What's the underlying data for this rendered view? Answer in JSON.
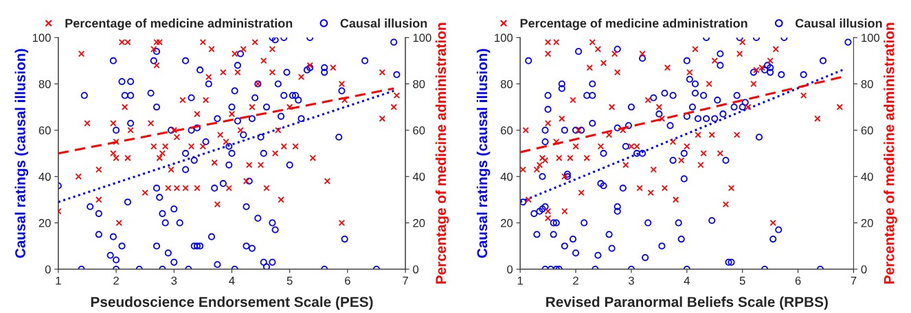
{
  "chart_data": [
    {
      "type": "scatter",
      "xlabel": "Pseudoscience Endorsement Scale (PES)",
      "ylabel": "Causal ratings (causal illusion)",
      "y2label": "Percentage of medicine administration",
      "xlim": [
        1,
        7
      ],
      "xticks": [
        1,
        2,
        3,
        4,
        5,
        6,
        7
      ],
      "ylim": [
        0,
        100
      ],
      "yticks": [
        0,
        20,
        40,
        60,
        80,
        100
      ],
      "y2lim": [
        0,
        100
      ],
      "y2ticks": [
        0,
        20,
        40,
        60,
        80,
        100
      ],
      "legend": "top",
      "grid": false,
      "series": [
        {
          "name": "Percentage of medicine administration",
          "color": "#ff0000",
          "marker": "cross",
          "axis": "y2",
          "x": [
            1.0,
            1.4,
            1.35,
            1.5,
            1.7,
            1.7,
            1.95,
            1.95,
            2.0,
            2.05,
            2.1,
            2.2,
            2.15,
            2.2,
            2.25,
            2.0,
            2.6,
            2.65,
            2.7,
            2.75,
            2.7,
            2.65,
            2.75,
            2.8,
            2.85,
            2.95,
            2.9,
            3.0,
            3.05,
            3.05,
            3.15,
            3.2,
            3.3,
            3.4,
            3.4,
            3.5,
            3.5,
            3.6,
            3.65,
            3.7,
            3.75,
            3.8,
            3.85,
            3.9,
            3.95,
            4.05,
            4.1,
            4.15,
            4.2,
            4.25,
            4.3,
            4.35,
            4.4,
            4.5,
            4.55,
            4.6,
            4.7,
            4.75,
            4.8,
            4.85,
            4.9,
            5.0,
            5.1,
            5.2,
            5.35,
            5.4,
            5.65,
            5.75,
            5.9,
            5.95,
            5.9,
            6.6,
            6.8,
            6.85,
            6.6,
            4.7,
            4.45,
            4.0,
            3.55,
            2.5
          ],
          "values": [
            25,
            93,
            40,
            63,
            43,
            30,
            50,
            63,
            55,
            20,
            98,
            98,
            70,
            48,
            60,
            48,
            63,
            95,
            98,
            98,
            88,
            53,
            48,
            50,
            53,
            43,
            35,
            60,
            35,
            57,
            73,
            35,
            53,
            35,
            67,
            53,
            98,
            83,
            95,
            46,
            28,
            58,
            85,
            55,
            35,
            93,
            85,
            60,
            95,
            38,
            45,
            70,
            98,
            45,
            90,
            35,
            85,
            50,
            60,
            30,
            53,
            70,
            53,
            83,
            88,
            48,
            38,
            87,
            20,
            73,
            80,
            65,
            70,
            75,
            85,
            95,
            80,
            67,
            73,
            33
          ]
        },
        {
          "name": "Causal illusion",
          "color": "#0000ff",
          "marker": "circle",
          "x": [
            1.0,
            1.45,
            1.55,
            1.7,
            1.7,
            1.95,
            2.0,
            1.95,
            1.9,
            2.0,
            2.0,
            1.4,
            2.1,
            2.15,
            2.1,
            2.2,
            2.25,
            2.25,
            2.25,
            2.6,
            2.7,
            2.7,
            2.65,
            2.7,
            2.7,
            2.75,
            2.8,
            2.85,
            2.9,
            2.8,
            2.95,
            3.0,
            3.1,
            3.0,
            3.2,
            3.2,
            3.2,
            3.3,
            3.3,
            3.35,
            3.4,
            3.45,
            3.35,
            3.4,
            3.45,
            3.55,
            3.6,
            3.65,
            3.7,
            3.75,
            3.75,
            3.85,
            3.95,
            3.95,
            4.0,
            4.0,
            4.05,
            4.1,
            4.15,
            4.2,
            4.25,
            4.25,
            4.3,
            4.35,
            4.4,
            4.45,
            4.5,
            4.55,
            4.55,
            4.6,
            4.7,
            4.75,
            4.7,
            4.75,
            4.85,
            4.9,
            4.9,
            4.95,
            5.0,
            5.05,
            5.1,
            5.15,
            5.2,
            5.3,
            5.35,
            5.35,
            5.6,
            5.6,
            5.85,
            5.9,
            5.95,
            5.6,
            6.3,
            6.5,
            6.8,
            6.85,
            4.35,
            4.6,
            4.05,
            3.25,
            2.4,
            4.45,
            4.7,
            4.1,
            4.8
          ],
          "values": [
            36,
            75,
            27,
            24,
            15,
            90,
            60,
            14,
            6,
            4,
            0,
            0,
            81,
            75,
            10,
            29,
            81,
            75,
            63,
            76,
            70,
            94,
            90,
            35,
            10,
            31,
            24,
            20,
            7,
            0,
            60,
            26,
            20,
            3,
            43,
            50,
            90,
            74,
            60,
            10,
            10,
            10,
            47,
            61,
            86,
            55,
            80,
            14,
            35,
            65,
            2,
            37,
            45,
            53,
            50,
            70,
            77,
            88,
            93,
            58,
            27,
            10,
            38,
            65,
            74,
            80,
            57,
            50,
            3,
            70,
            100,
            99,
            20,
            17,
            66,
            75,
            100,
            85,
            45,
            75,
            75,
            73,
            65,
            86,
            100,
            87,
            85,
            87,
            57,
            77,
            13,
            0,
            90,
            0,
            98,
            84,
            9,
            1,
            0,
            0,
            0,
            22,
            3,
            64,
            80
          ]
        },
        {
          "type": "line",
          "color": "#ff0000",
          "line_style": "dashed",
          "axis": "y2",
          "x": [
            1.0,
            6.8
          ],
          "values": [
            50,
            78
          ]
        },
        {
          "type": "line",
          "color": "#0000ff",
          "line_style": "dotted",
          "x": [
            1.0,
            6.8
          ],
          "values": [
            29,
            77
          ]
        }
      ]
    },
    {
      "type": "scatter",
      "xlabel": "Revised Paranormal Beliefs Scale (RPBS)",
      "ylabel": "Causal ratings (causal illusion)",
      "y2label": "Percentage of medicine administration",
      "xlim": [
        1,
        7
      ],
      "xticks": [
        1,
        2,
        3,
        4,
        5,
        6,
        7
      ],
      "ylim": [
        0,
        100
      ],
      "yticks": [
        0,
        20,
        40,
        60,
        80,
        100
      ],
      "y2lim": [
        0,
        100
      ],
      "y2ticks": [
        0,
        20,
        40,
        60,
        80,
        100
      ],
      "legend": "top",
      "grid": false,
      "series": [
        {
          "name": "Percentage of medicine administration",
          "color": "#ff0000",
          "marker": "cross",
          "axis": "y2",
          "x": [
            1.05,
            1.1,
            1.15,
            1.3,
            1.35,
            1.4,
            1.45,
            1.5,
            1.5,
            1.5,
            1.5,
            1.5,
            1.65,
            1.65,
            1.7,
            1.75,
            1.8,
            1.8,
            1.9,
            1.95,
            2.0,
            2.05,
            2.1,
            2.2,
            2.3,
            2.4,
            2.45,
            2.5,
            2.6,
            2.65,
            2.7,
            2.75,
            2.85,
            2.9,
            3.0,
            3.1,
            3.15,
            3.2,
            3.3,
            3.35,
            3.4,
            3.5,
            3.55,
            3.6,
            3.75,
            3.8,
            3.9,
            4.0,
            4.05,
            4.15,
            4.2,
            4.3,
            4.4,
            4.45,
            4.5,
            4.6,
            4.7,
            4.8,
            4.9,
            4.95,
            5.0,
            5.1,
            5.2,
            5.35,
            5.5,
            5.55,
            5.6,
            6.1,
            6.35,
            6.75,
            5.25,
            4.25,
            3.65,
            2.25
          ],
          "values": [
            43,
            60,
            30,
            43,
            45,
            48,
            47,
            93,
            98,
            63,
            25,
            22,
            98,
            55,
            48,
            65,
            40,
            25,
            48,
            73,
            53,
            60,
            33,
            48,
            98,
            95,
            53,
            89,
            58,
            70,
            93,
            85,
            60,
            45,
            53,
            53,
            35,
            93,
            73,
            33,
            43,
            70,
            65,
            35,
            55,
            30,
            47,
            53,
            85,
            95,
            58,
            50,
            80,
            58,
            90,
            50,
            28,
            35,
            58,
            93,
            98,
            70,
            80,
            87,
            90,
            20,
            95,
            75,
            65,
            70,
            86,
            45,
            87,
            87
          ]
        },
        {
          "name": "Causal illusion",
          "color": "#0000ff",
          "marker": "circle",
          "x": [
            1.05,
            1.15,
            1.25,
            1.35,
            1.4,
            1.45,
            1.4,
            1.45,
            1.45,
            1.5,
            1.5,
            1.3,
            1.6,
            1.6,
            1.65,
            1.45,
            1.55,
            1.65,
            1.7,
            1.75,
            1.75,
            1.8,
            1.85,
            1.85,
            1.8,
            1.95,
            2.0,
            2.0,
            2.05,
            2.1,
            2.15,
            2.2,
            2.3,
            2.3,
            2.3,
            2.35,
            2.4,
            2.45,
            2.5,
            2.5,
            2.6,
            2.65,
            2.75,
            2.75,
            2.75,
            2.75,
            2.85,
            2.9,
            2.95,
            3.0,
            3.0,
            3.1,
            3.2,
            3.2,
            3.25,
            3.3,
            3.4,
            3.5,
            3.55,
            3.6,
            3.7,
            3.75,
            3.75,
            3.85,
            3.9,
            3.95,
            3.95,
            4.0,
            4.0,
            4.05,
            4.1,
            4.15,
            4.15,
            4.2,
            4.3,
            4.35,
            4.35,
            4.45,
            4.5,
            4.55,
            4.6,
            4.6,
            4.65,
            4.7,
            4.75,
            4.8,
            4.85,
            4.9,
            4.95,
            5.0,
            5.05,
            5.2,
            5.25,
            5.3,
            5.4,
            5.45,
            5.5,
            5.5,
            5.55,
            5.65,
            5.7,
            5.75,
            6.1,
            6.4,
            6.45,
            6.9,
            5.4,
            4.0
          ],
          "values": [
            29,
            90,
            24,
            25,
            26,
            27,
            40,
            55,
            60,
            69,
            75,
            15,
            15,
            20,
            20,
            0,
            0,
            0,
            0,
            78,
            80,
            60,
            41,
            40,
            10,
            13,
            60,
            7,
            94,
            60,
            20,
            75,
            75,
            63,
            80,
            0,
            6,
            37,
            36,
            50,
            15,
            9,
            25,
            27,
            95,
            61,
            35,
            53,
            62,
            70,
            0,
            50,
            91,
            50,
            5,
            20,
            74,
            67,
            10,
            76,
            62,
            75,
            47,
            20,
            13,
            39,
            50,
            66,
            90,
            82,
            70,
            76,
            80,
            65,
            75,
            65,
            100,
            21,
            65,
            73,
            93,
            88,
            67,
            47,
            3,
            3,
            70,
            75,
            100,
            70,
            72,
            85,
            100,
            57,
            86,
            88,
            87,
            85,
            13,
            17,
            84,
            100,
            84,
            0,
            90,
            98,
            0,
            0
          ]
        },
        {
          "type": "line",
          "color": "#ff0000",
          "line_style": "dashed",
          "axis": "y2",
          "x": [
            1.0,
            6.8
          ],
          "values": [
            50.5,
            83
          ]
        },
        {
          "type": "line",
          "color": "#0000ff",
          "line_style": "dotted",
          "x": [
            1.0,
            6.8
          ],
          "values": [
            29,
            86
          ]
        }
      ]
    }
  ]
}
